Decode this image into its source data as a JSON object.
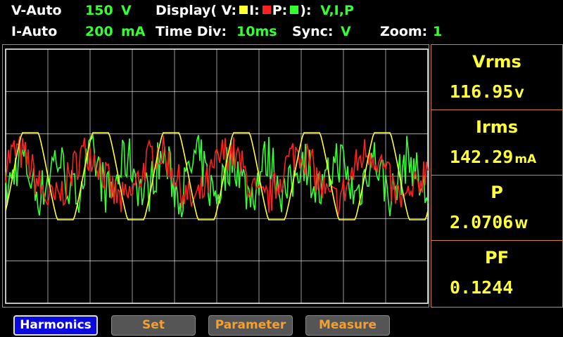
{
  "header": {
    "v_auto_label": "V-Auto",
    "v_range": "150",
    "v_unit": "V",
    "display_label": "Display( V:",
    "display_i": "I:",
    "display_p": "P:",
    "display_close": "):",
    "display_value": "V,I,P",
    "i_auto_label": "I-Auto",
    "i_range": "200",
    "i_unit": "mA",
    "time_div_label": "Time  Div:",
    "time_div_value": "10ms",
    "sync_label": "Sync:",
    "sync_value": "V",
    "zoom_label": "Zoom:",
    "zoom_value": "1"
  },
  "colors": {
    "voltage": "#ffff33",
    "current": "#ff2020",
    "power": "#33ff33",
    "grid": "#ffffff",
    "frame": "#d08a1a"
  },
  "measurements": [
    {
      "label": "Vrms",
      "value": "116.95",
      "unit": "V"
    },
    {
      "label": "Irms",
      "value": "142.29",
      "unit": "mA"
    },
    {
      "label": "P",
      "value": "2.0706",
      "unit": "W"
    },
    {
      "label": "PF",
      "value": "0.1244",
      "unit": ""
    }
  ],
  "buttons": [
    {
      "label": "Harmonics",
      "active": true
    },
    {
      "label": "Set",
      "active": false
    },
    {
      "label": "Parameter",
      "active": false
    },
    {
      "label": "Measure",
      "active": false
    }
  ]
}
